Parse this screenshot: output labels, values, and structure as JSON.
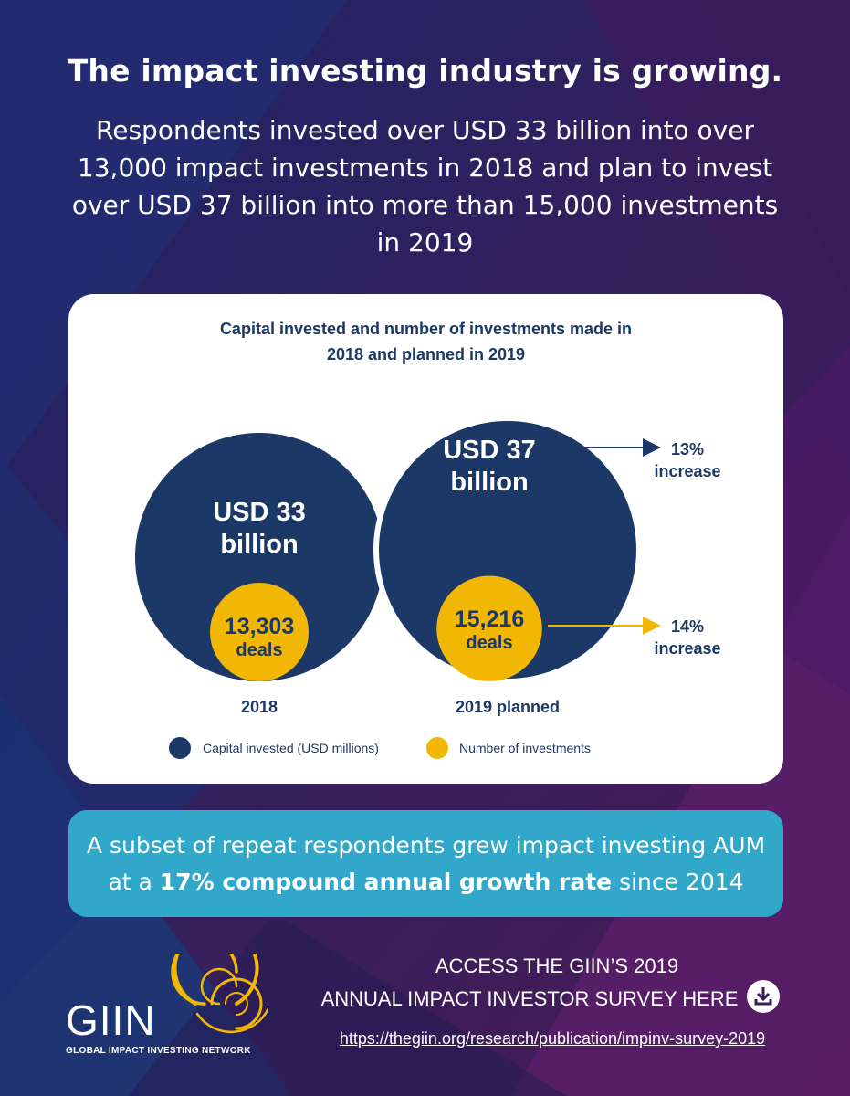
{
  "headline": "The impact investing industry is growing.",
  "subhead": "Respondents invested over USD 33 billion into over 13,000 impact investments in 2018 and plan to invest over USD 37 billion into more than 15,000 investments in 2019",
  "card": {
    "title_line1": "Capital invested and number of investments made in",
    "title_line2": "2018 and planned in 2019"
  },
  "chart_data": {
    "type": "bubble",
    "title": "Capital invested and number of investments made in 2018 and planned in 2019",
    "categories": [
      "2018",
      "2019 planned"
    ],
    "series": [
      {
        "name": "Capital invested (USD millions)",
        "labels": [
          "USD 33 billion",
          "USD 37 billion"
        ],
        "values": [
          33000,
          37000
        ],
        "color": "#1c3866"
      },
      {
        "name": "Number of investments",
        "labels": [
          "13,303 deals",
          "15,216 deals"
        ],
        "values": [
          13303,
          15216
        ],
        "color": "#f2b705"
      }
    ],
    "annotations": [
      {
        "text_line1": "13%",
        "text_line2": "increase",
        "series": "Capital invested (USD millions)"
      },
      {
        "text_line1": "14%",
        "text_line2": "increase",
        "series": "Number of investments"
      }
    ],
    "bubble_text": [
      {
        "line1": "USD 33",
        "line2": "billion"
      },
      {
        "line1": "USD 37",
        "line2": "billion"
      }
    ],
    "deal_text": [
      {
        "line1": "13,303",
        "line2": "deals"
      },
      {
        "line1": "15,216",
        "line2": "deals"
      }
    ]
  },
  "banner": {
    "line1": "A subset of repeat respondents grew impact investing AUM",
    "line2_prefix": "at a ",
    "line2_bold": "17% compound annual growth rate",
    "line2_suffix": " since 2014"
  },
  "logo": {
    "name": "GIIN",
    "tagline": "GLOBAL IMPACT INVESTING NETWORK"
  },
  "cta": {
    "line1": "ACCESS THE GIIN’S 2019",
    "line2": "ANNUAL IMPACT INVESTOR SURVEY HERE",
    "url": "https://thegiin.org/research/publication/impinv-survey-2019",
    "icon": "download-icon"
  },
  "colors": {
    "navy": "#1c3866",
    "gold": "#f2b705",
    "banner": "#31a7c9"
  }
}
